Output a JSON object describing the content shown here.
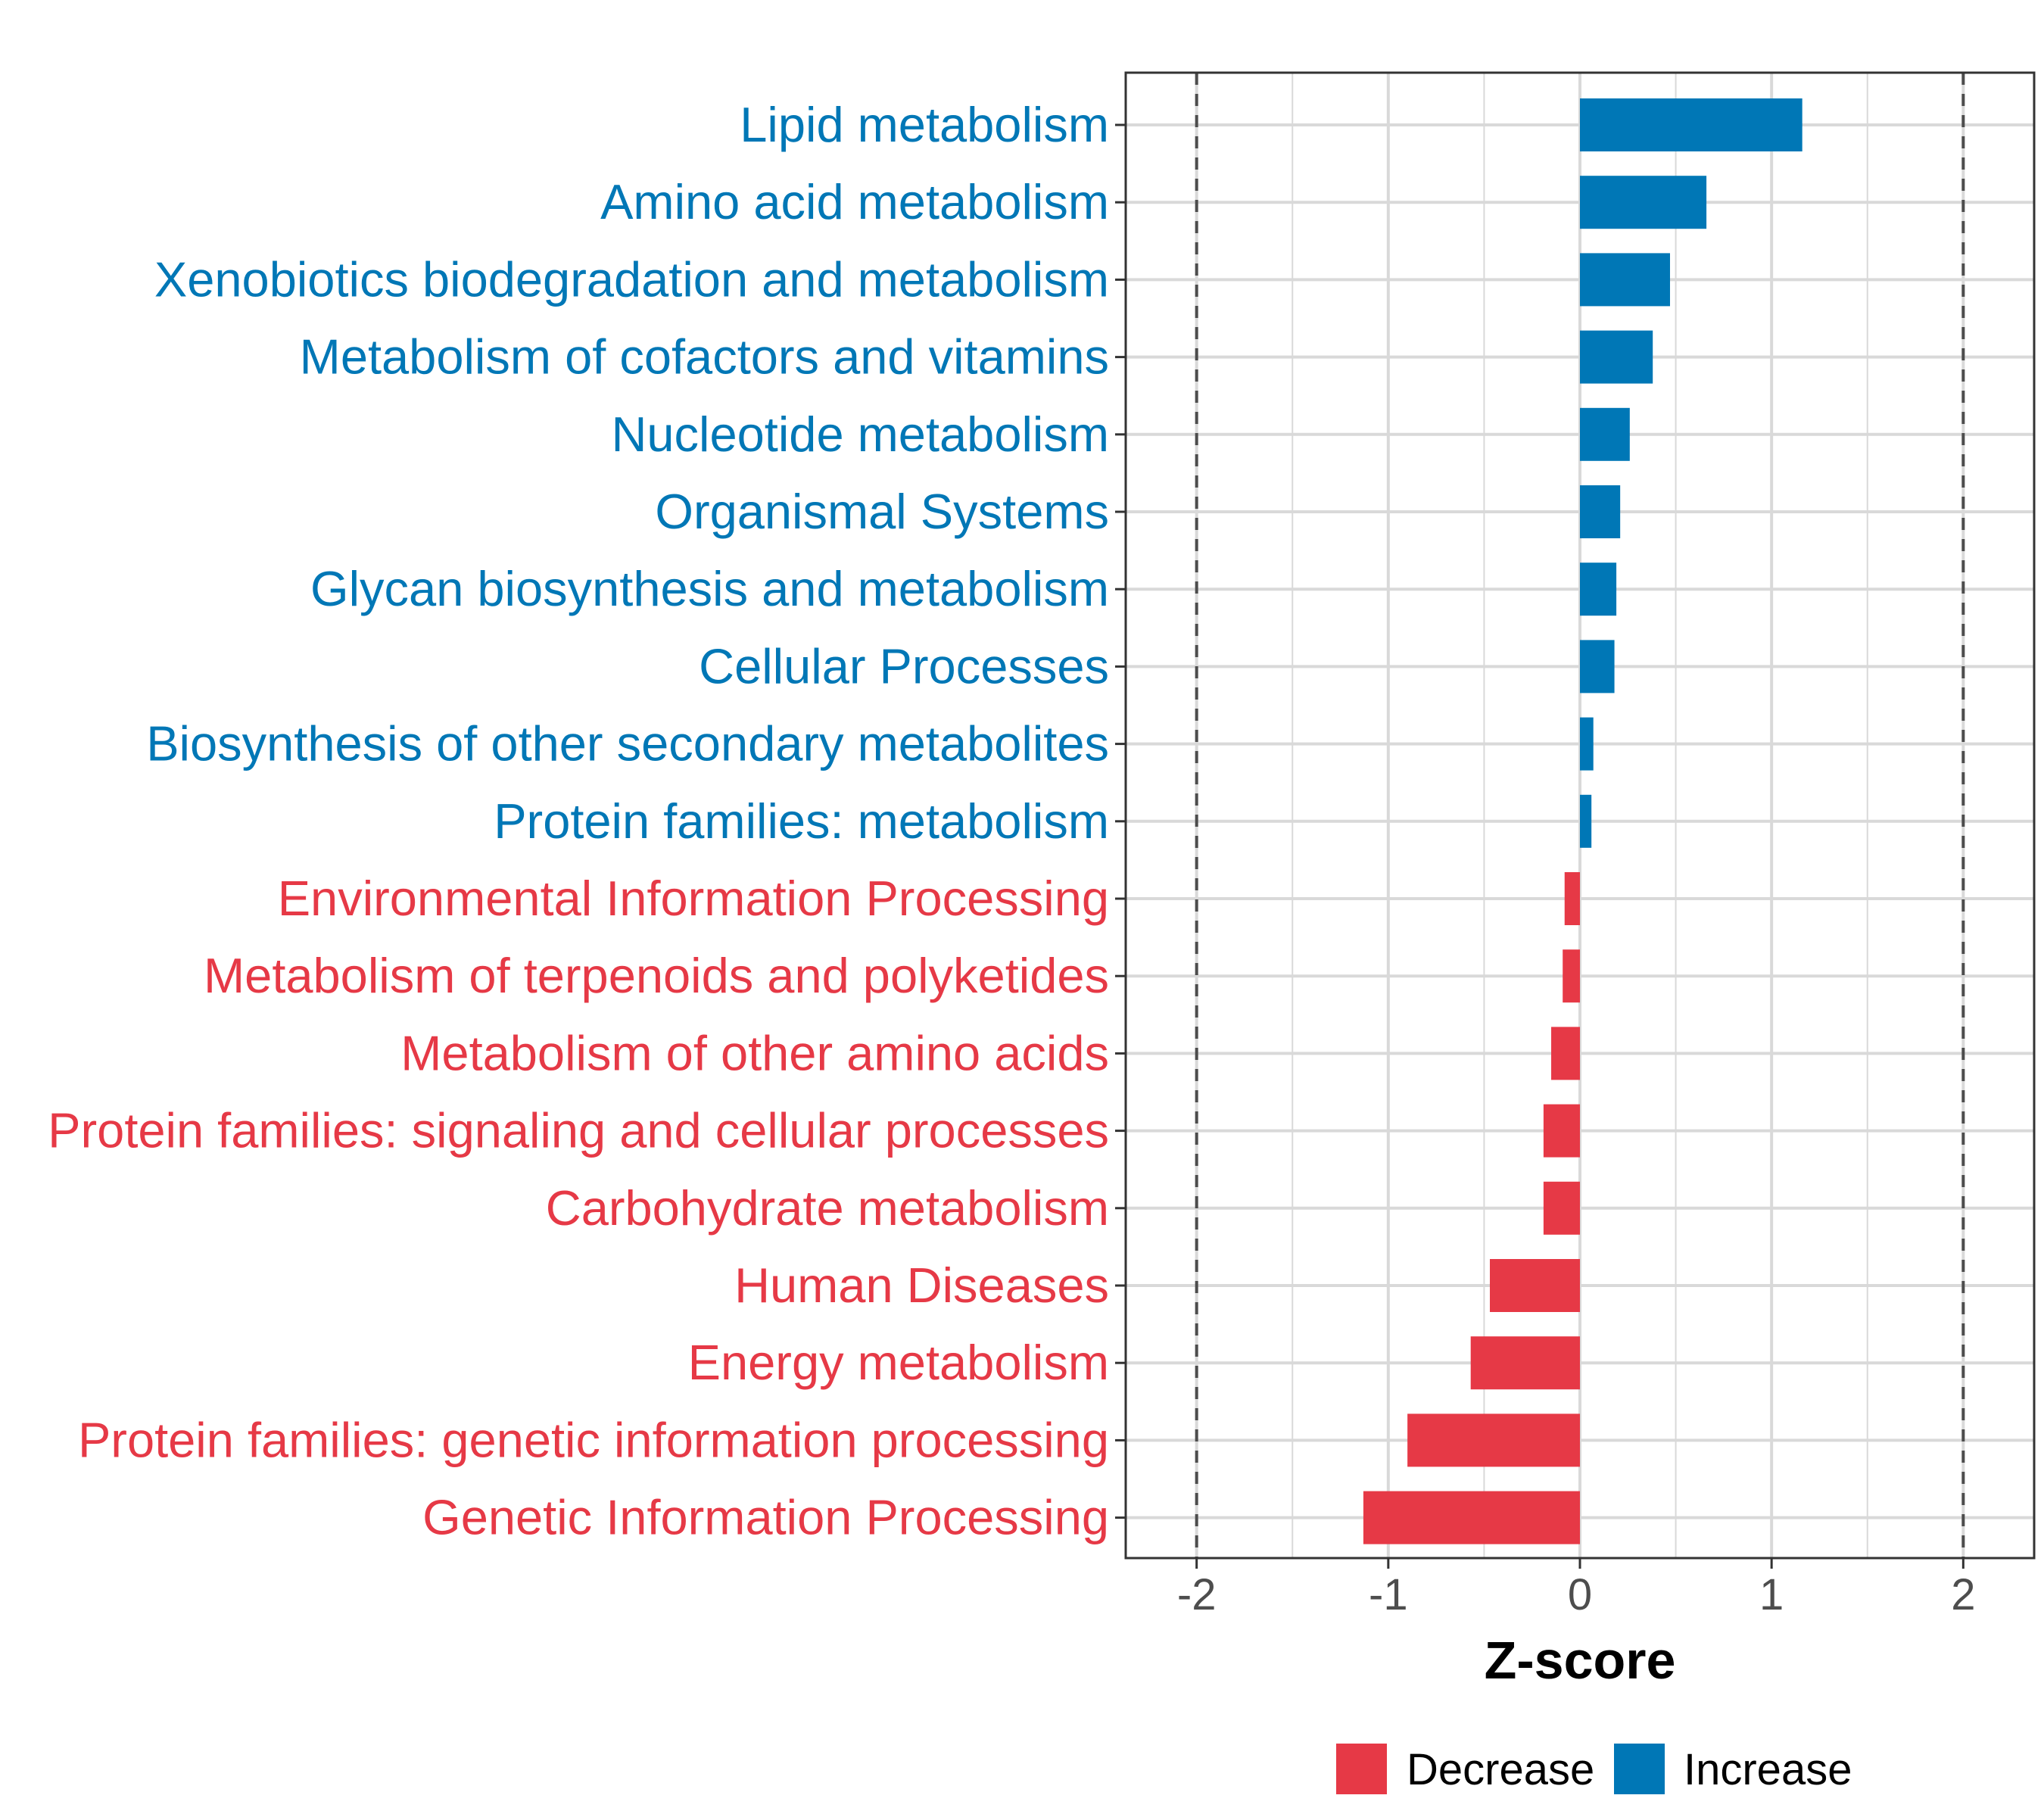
{
  "chart_data": {
    "type": "bar",
    "orientation": "horizontal",
    "categories": [
      "Lipid metabolism",
      "Amino acid metabolism",
      "Xenobiotics biodegradation and metabolism",
      "Metabolism of cofactors and vitamins",
      "Nucleotide metabolism",
      "Organismal Systems",
      "Glycan biosynthesis and metabolism",
      "Cellular Processes",
      "Biosynthesis of other secondary metabolites",
      "Protein families: metabolism",
      "Environmental Information Processing",
      "Metabolism of terpenoids and polyketides",
      "Metabolism of other amino acids",
      "Protein families: signaling and cellular processes",
      "Carbohydrate metabolism",
      "Human Diseases",
      "Energy metabolism",
      "Protein families: genetic information processing",
      "Genetic Information Processing"
    ],
    "values": [
      1.16,
      0.66,
      0.47,
      0.38,
      0.26,
      0.21,
      0.19,
      0.18,
      0.07,
      0.06,
      -0.08,
      -0.09,
      -0.15,
      -0.19,
      -0.19,
      -0.47,
      -0.57,
      -0.9,
      -1.13
    ],
    "xlabel": "Z-score",
    "ylabel": "",
    "xlim": [
      -2.37,
      2.37
    ],
    "xticks": [
      "-2",
      "-1",
      "0",
      "1",
      "2"
    ],
    "reference_lines": [
      -2,
      2
    ],
    "legend": [
      {
        "label": "Decrease",
        "color": "#E63946"
      },
      {
        "label": "Increase",
        "color": "#0077B6"
      }
    ],
    "legend_position": "bottom",
    "grid": true
  },
  "colors": {
    "increase": "#0077B6",
    "decrease": "#E63946",
    "grid": "#d9d9d9",
    "reference_line": "#4d4d4d",
    "panel_border": "#333333"
  }
}
